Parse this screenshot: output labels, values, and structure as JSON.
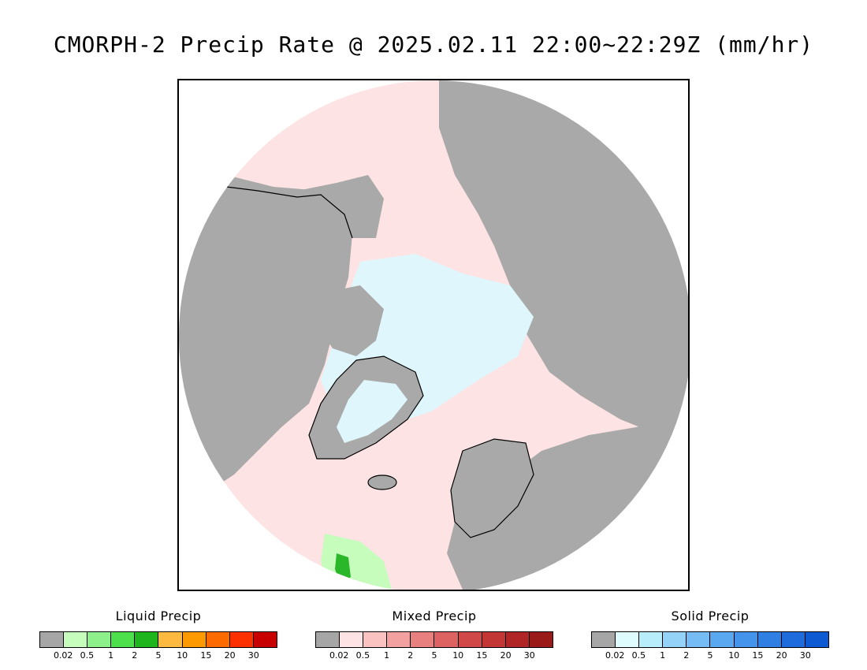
{
  "title": "CMORPH-2 Precip Rate @ 2025.02.11 22:00~22:29Z (mm/hr)",
  "legends": [
    {
      "key": "liquid",
      "title": "Liquid Precip",
      "colors": [
        "#a6a6a6",
        "#c6fdbd",
        "#8ef08a",
        "#4ee04c",
        "#1fb51e",
        "#fdb940",
        "#fd9a00",
        "#fd6a00",
        "#fd3000",
        "#c80000"
      ],
      "ticks": [
        "0.02",
        "0.5",
        "1",
        "2",
        "5",
        "10",
        "15",
        "20",
        "30"
      ]
    },
    {
      "key": "mixed",
      "title": "Mixed Precip",
      "colors": [
        "#a6a6a6",
        "#fde3e3",
        "#fbc2c2",
        "#f2a0a0",
        "#e88080",
        "#dd6262",
        "#d04848",
        "#c23636",
        "#b02626",
        "#9a1a1a"
      ],
      "ticks": [
        "0.02",
        "0.5",
        "1",
        "2",
        "5",
        "10",
        "15",
        "20",
        "30"
      ]
    },
    {
      "key": "solid",
      "title": "Solid Precip",
      "colors": [
        "#a6a6a6",
        "#defcfe",
        "#b8eefc",
        "#94d2f8",
        "#76bcf4",
        "#5aa8f0",
        "#4494ec",
        "#3080e4",
        "#1e6cdc",
        "#0e5ad2"
      ],
      "ticks": [
        "0.02",
        "0.5",
        "1",
        "2",
        "5",
        "10",
        "15",
        "20",
        "30"
      ]
    }
  ],
  "map": {
    "projection": "north-polar-stereographic",
    "colors": {
      "no_data_gray": "#a9a9a9",
      "mixed_light": "#fde3e3",
      "solid_light": "#dff7fc",
      "liquid_light": "#c6fdbd",
      "liquid_green": "#2ab82a",
      "coast": "#000000"
    }
  }
}
